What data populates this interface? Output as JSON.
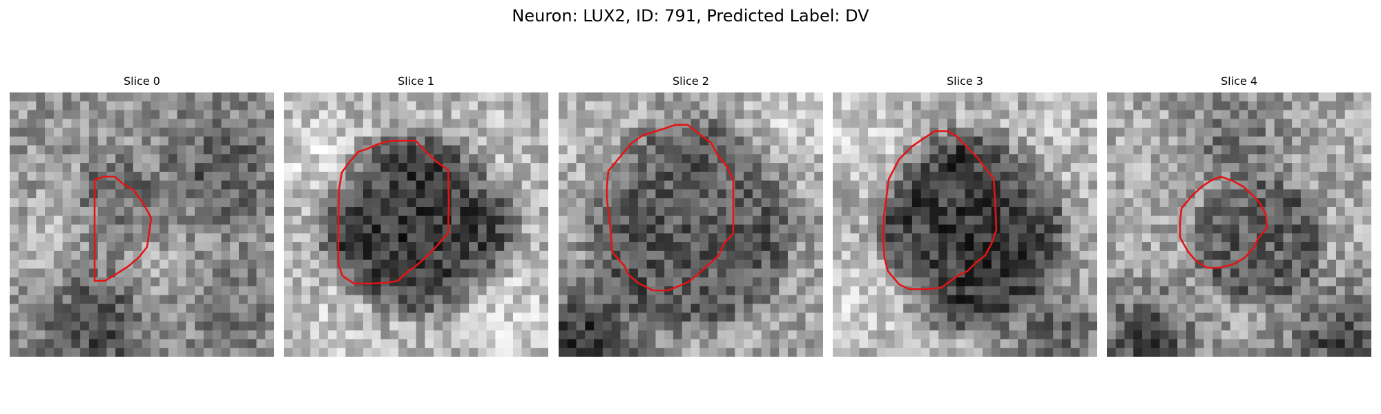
{
  "figure": {
    "title": "Neuron: LUX2, ID: 791, Predicted Label: DV"
  },
  "colors": {
    "contour": "#e41414",
    "background": "#ffffff"
  },
  "image_grid": {
    "rows": 30,
    "cols": 30,
    "colormap": "grayscale"
  },
  "panels": [
    {
      "label": "Slice 0",
      "contour_color": "#e41414",
      "seed": 11
    },
    {
      "label": "Slice 1",
      "contour_color": "#e41414",
      "seed": 23
    },
    {
      "label": "Slice 2",
      "contour_color": "#e41414",
      "seed": 37
    },
    {
      "label": "Slice 3",
      "contour_color": "#e41414",
      "seed": 51
    },
    {
      "label": "Slice 4",
      "contour_color": "#e41414",
      "seed": 67
    }
  ]
}
